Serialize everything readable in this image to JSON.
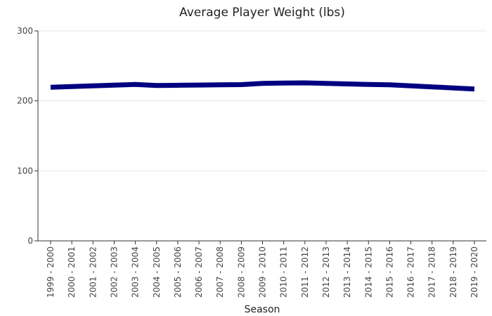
{
  "chart_data": {
    "type": "line",
    "title": "Average Player Weight (lbs)",
    "xlabel": "Season",
    "ylabel": "",
    "ylim": [
      0,
      300
    ],
    "yticks": [
      0,
      100,
      200,
      300
    ],
    "grid": true,
    "legend": "none",
    "categories": [
      "1999 - 2000",
      "2000 - 2001",
      "2001 - 2002",
      "2002 - 2003",
      "2003 - 2004",
      "2004 - 2005",
      "2005 - 2006",
      "2006 - 2007",
      "2007 - 2008",
      "2008 - 2009",
      "2009 - 2010",
      "2010 - 2011",
      "2011 - 2012",
      "2012 - 2013",
      "2013 - 2014",
      "2014 - 2015",
      "2015 - 2016",
      "2016 - 2017",
      "2017 - 2018",
      "2018 - 2019",
      "2019 - 2020"
    ],
    "series": [
      {
        "color": "#000080",
        "values": [
          219.5,
          220.5,
          221.5,
          222.5,
          223.5,
          222.0,
          222.3,
          222.6,
          223.0,
          223.3,
          225.0,
          225.5,
          225.8,
          225.0,
          224.2,
          223.5,
          223.0,
          221.5,
          220.0,
          218.5,
          217.0
        ]
      }
    ]
  }
}
